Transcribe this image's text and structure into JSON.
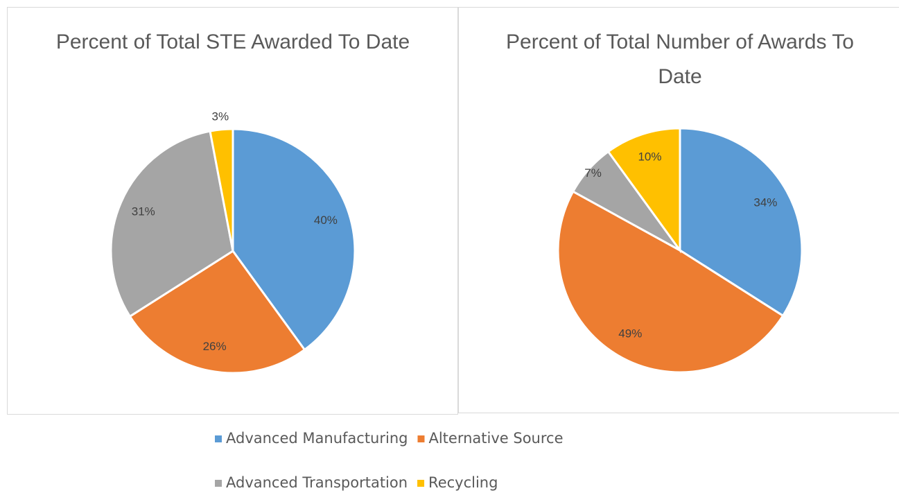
{
  "chart_data": [
    {
      "type": "pie",
      "title": "Percent of Total STE Awarded To Date",
      "values": [
        40,
        26,
        31,
        3
      ],
      "value_labels": [
        "40%",
        "26%",
        "31%",
        "3%"
      ]
    },
    {
      "type": "pie",
      "title": "Percent of Total Number of Awards To Date",
      "values": [
        34,
        49,
        7,
        10
      ],
      "value_labels": [
        "34%",
        "49%",
        "7%",
        "10%"
      ]
    }
  ],
  "legend": {
    "labels": [
      "Advanced Manufacturing",
      "Alternative Source",
      "Advanced Transportation",
      "Recycling"
    ],
    "colors": [
      "#5b9bd5",
      "#ed7d31",
      "#a5a5a5",
      "#ffc000"
    ]
  }
}
